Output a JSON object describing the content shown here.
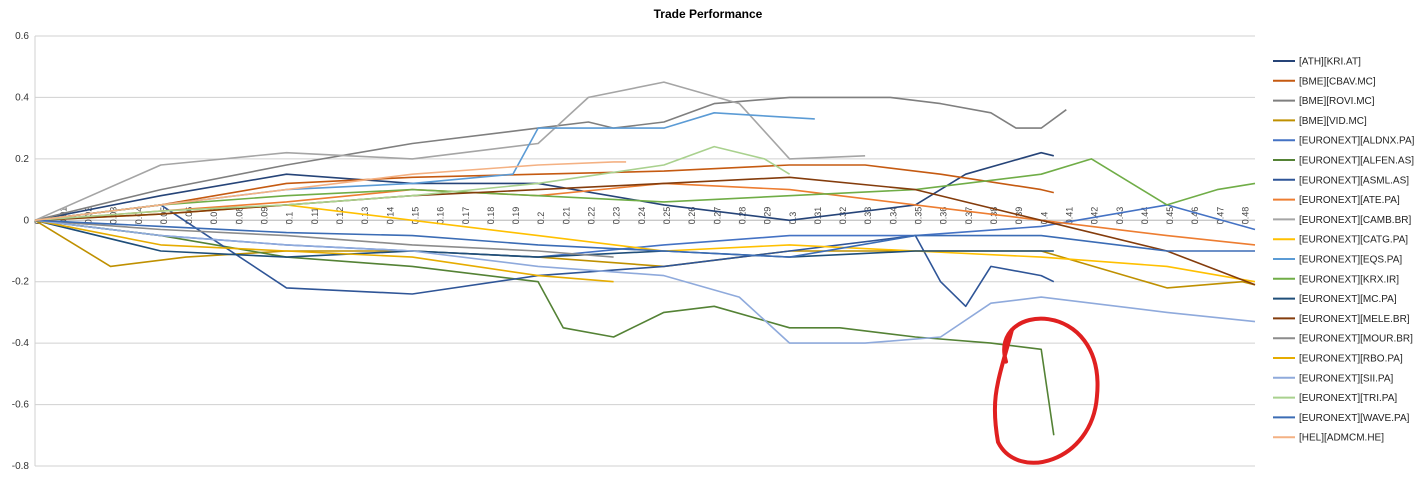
{
  "chart_data": {
    "type": "line",
    "title": "Trade Performance",
    "xlabel": "",
    "ylabel": "",
    "ylim": [
      -0.8,
      0.6
    ],
    "yticks": [
      -0.8,
      -0.6,
      -0.4,
      -0.2,
      0,
      0.2,
      0.4,
      0.6
    ],
    "xlim": [
      0,
      0.485
    ],
    "xticks": [
      0,
      0.01,
      0.02,
      0.03,
      0.04,
      0.05,
      0.06,
      0.07,
      0.08,
      0.09,
      0.1,
      0.11,
      0.12,
      0.13,
      0.14,
      0.15,
      0.16,
      0.17,
      0.18,
      0.19,
      0.2,
      0.21,
      0.22,
      0.23,
      0.24,
      0.25,
      0.26,
      0.27,
      0.28,
      0.29,
      0.3,
      0.31,
      0.32,
      0.33,
      0.34,
      0.35,
      0.36,
      0.37,
      0.38,
      0.39,
      0.4,
      0.41,
      0.42,
      0.43,
      0.44,
      0.45,
      0.46,
      0.47,
      0.48
    ],
    "grid": "horizontal",
    "legend_position": "right",
    "series": [
      {
        "name": "[ATH][KRI.AT]",
        "color": "#264478",
        "x": [
          0,
          0.05,
          0.1,
          0.15,
          0.2,
          0.25,
          0.3,
          0.35,
          0.37,
          0.4,
          0.405
        ],
        "y": [
          0,
          0.08,
          0.15,
          0.12,
          0.12,
          0.05,
          0.0,
          0.05,
          0.15,
          0.22,
          0.21
        ]
      },
      {
        "name": "[BME][CBAV.MC]",
        "color": "#C55A11",
        "x": [
          0,
          0.05,
          0.1,
          0.15,
          0.2,
          0.25,
          0.3,
          0.33,
          0.36,
          0.4,
          0.405
        ],
        "y": [
          0,
          0.05,
          0.12,
          0.14,
          0.15,
          0.16,
          0.18,
          0.18,
          0.15,
          0.1,
          0.09
        ]
      },
      {
        "name": "[BME][ROVI.MC]",
        "color": "#7F7F7F",
        "x": [
          0,
          0.05,
          0.1,
          0.15,
          0.2,
          0.22,
          0.23,
          0.25,
          0.27,
          0.3,
          0.32,
          0.34,
          0.36,
          0.38,
          0.39,
          0.4,
          0.41
        ],
        "y": [
          0,
          0.1,
          0.18,
          0.25,
          0.3,
          0.32,
          0.3,
          0.32,
          0.38,
          0.4,
          0.4,
          0.4,
          0.38,
          0.35,
          0.3,
          0.3,
          0.36
        ]
      },
      {
        "name": "[BME][VID.MC]",
        "color": "#BF9000",
        "x": [
          0,
          0.03,
          0.06,
          0.1,
          0.15,
          0.2,
          0.25,
          0.3,
          0.35,
          0.4,
          0.45,
          0.48,
          0.485
        ],
        "y": [
          0,
          -0.15,
          -0.12,
          -0.1,
          -0.1,
          -0.12,
          -0.15,
          -0.1,
          -0.1,
          -0.1,
          -0.22,
          -0.2,
          -0.21
        ]
      },
      {
        "name": "[EURONEXT][ALDNX.PA]",
        "color": "#4472C4",
        "x": [
          0,
          0.05,
          0.1,
          0.15,
          0.2,
          0.25,
          0.3,
          0.35,
          0.4,
          0.45,
          0.485
        ],
        "y": [
          0,
          -0.05,
          -0.08,
          -0.1,
          -0.12,
          -0.08,
          -0.05,
          -0.05,
          -0.02,
          0.05,
          -0.03
        ]
      },
      {
        "name": "[EURONEXT][ALFEN.AS]",
        "color": "#548235",
        "x": [
          0,
          0.05,
          0.1,
          0.15,
          0.2,
          0.21,
          0.23,
          0.25,
          0.27,
          0.3,
          0.32,
          0.35,
          0.38,
          0.4,
          0.405
        ],
        "y": [
          0,
          -0.05,
          -0.12,
          -0.15,
          -0.2,
          -0.35,
          -0.38,
          -0.3,
          -0.28,
          -0.35,
          -0.35,
          -0.38,
          -0.4,
          -0.42,
          -0.7
        ]
      },
      {
        "name": "[EURONEXT][ASML.AS]",
        "color": "#2F5597",
        "x": [
          0,
          0.05,
          0.1,
          0.15,
          0.2,
          0.25,
          0.3,
          0.35,
          0.36,
          0.37,
          0.38,
          0.4,
          0.405
        ],
        "y": [
          0,
          0.05,
          -0.22,
          -0.24,
          -0.18,
          -0.15,
          -0.1,
          -0.05,
          -0.2,
          -0.28,
          -0.15,
          -0.18,
          -0.2
        ]
      },
      {
        "name": "[EURONEXT][ATE.PA]",
        "color": "#ED7D31",
        "x": [
          0,
          0.05,
          0.1,
          0.15,
          0.2,
          0.25,
          0.3,
          0.35,
          0.4,
          0.45,
          0.485
        ],
        "y": [
          0,
          0.03,
          0.06,
          0.1,
          0.08,
          0.12,
          0.1,
          0.05,
          0.0,
          -0.05,
          -0.08
        ]
      },
      {
        "name": "[EURONEXT][CAMB.BR]",
        "color": "#A5A5A5",
        "x": [
          0,
          0.05,
          0.1,
          0.15,
          0.2,
          0.22,
          0.25,
          0.28,
          0.3,
          0.33
        ],
        "y": [
          0,
          0.18,
          0.22,
          0.2,
          0.25,
          0.4,
          0.45,
          0.38,
          0.2,
          0.21
        ]
      },
      {
        "name": "[EURONEXT][CATG.PA]",
        "color": "#FFC000",
        "x": [
          0,
          0.05,
          0.1,
          0.15,
          0.2,
          0.25,
          0.3,
          0.35,
          0.4,
          0.45,
          0.485
        ],
        "y": [
          0,
          0.02,
          0.05,
          0.0,
          -0.05,
          -0.1,
          -0.08,
          -0.1,
          -0.12,
          -0.15,
          -0.2
        ]
      },
      {
        "name": "[EURONEXT][EQS.PA]",
        "color": "#5B9BD5",
        "x": [
          0,
          0.05,
          0.1,
          0.15,
          0.19,
          0.2,
          0.22,
          0.25,
          0.27,
          0.29,
          0.31
        ],
        "y": [
          0,
          0.05,
          0.1,
          0.12,
          0.15,
          0.3,
          0.3,
          0.3,
          0.35,
          0.34,
          0.33
        ]
      },
      {
        "name": "[EURONEXT][KRX.IR]",
        "color": "#70AD47",
        "x": [
          0,
          0.05,
          0.1,
          0.15,
          0.2,
          0.25,
          0.3,
          0.35,
          0.4,
          0.42,
          0.45,
          0.47,
          0.485
        ],
        "y": [
          0,
          0.05,
          0.08,
          0.1,
          0.08,
          0.06,
          0.08,
          0.1,
          0.15,
          0.2,
          0.05,
          0.1,
          0.12
        ]
      },
      {
        "name": "[EURONEXT][MC.PA]",
        "color": "#1F4E79",
        "x": [
          0,
          0.05,
          0.1,
          0.15,
          0.2,
          0.25,
          0.3,
          0.35,
          0.4,
          0.405
        ],
        "y": [
          0,
          -0.1,
          -0.12,
          -0.1,
          -0.12,
          -0.1,
          -0.12,
          -0.1,
          -0.1,
          -0.1
        ]
      },
      {
        "name": "[EURONEXT][MELE.BR]",
        "color": "#843C0C",
        "x": [
          0,
          0.05,
          0.1,
          0.15,
          0.2,
          0.25,
          0.3,
          0.35,
          0.4,
          0.45,
          0.485
        ],
        "y": [
          0,
          0.02,
          0.05,
          0.08,
          0.1,
          0.12,
          0.14,
          0.1,
          0.0,
          -0.1,
          -0.21
        ]
      },
      {
        "name": "[EURONEXT][MOUR.BR]",
        "color": "#8C8C8C",
        "x": [
          0,
          0.05,
          0.1,
          0.15,
          0.2,
          0.23
        ],
        "y": [
          0,
          -0.03,
          -0.05,
          -0.08,
          -0.1,
          -0.12
        ]
      },
      {
        "name": "[EURONEXT][RBO.PA]",
        "color": "#E6AC00",
        "x": [
          0,
          0.05,
          0.1,
          0.15,
          0.2,
          0.23
        ],
        "y": [
          0,
          -0.08,
          -0.1,
          -0.12,
          -0.18,
          -0.2
        ]
      },
      {
        "name": "[EURONEXT][SII.PA]",
        "color": "#8FAADC",
        "x": [
          0,
          0.05,
          0.1,
          0.15,
          0.2,
          0.25,
          0.28,
          0.3,
          0.33,
          0.36,
          0.38,
          0.4,
          0.45,
          0.485
        ],
        "y": [
          0,
          -0.05,
          -0.08,
          -0.1,
          -0.15,
          -0.18,
          -0.25,
          -0.4,
          -0.4,
          -0.38,
          -0.27,
          -0.25,
          -0.3,
          -0.33
        ]
      },
      {
        "name": "[EURONEXT][TRI.PA]",
        "color": "#A9D18E",
        "x": [
          0,
          0.05,
          0.1,
          0.15,
          0.2,
          0.25,
          0.27,
          0.29,
          0.3
        ],
        "y": [
          0,
          0.03,
          0.05,
          0.08,
          0.12,
          0.18,
          0.24,
          0.2,
          0.15
        ]
      },
      {
        "name": "[EURONEXT][WAVE.PA]",
        "color": "#3B6CB5",
        "x": [
          0,
          0.05,
          0.1,
          0.15,
          0.2,
          0.25,
          0.3,
          0.35,
          0.4,
          0.45,
          0.485
        ],
        "y": [
          0,
          -0.02,
          -0.04,
          -0.05,
          -0.08,
          -0.1,
          -0.12,
          -0.05,
          -0.05,
          -0.1,
          -0.1
        ]
      },
      {
        "name": "[HEL][ADMCM.HE]",
        "color": "#F4B183",
        "x": [
          0,
          0.05,
          0.1,
          0.15,
          0.2,
          0.23,
          0.235
        ],
        "y": [
          0,
          0.05,
          0.1,
          0.15,
          0.18,
          0.19,
          0.19
        ]
      }
    ],
    "annotation": {
      "type": "freehand-circle",
      "color": "#E02020",
      "x_range": [
        0.39,
        0.415
      ],
      "y_range": [
        -0.82,
        -0.33
      ]
    }
  }
}
